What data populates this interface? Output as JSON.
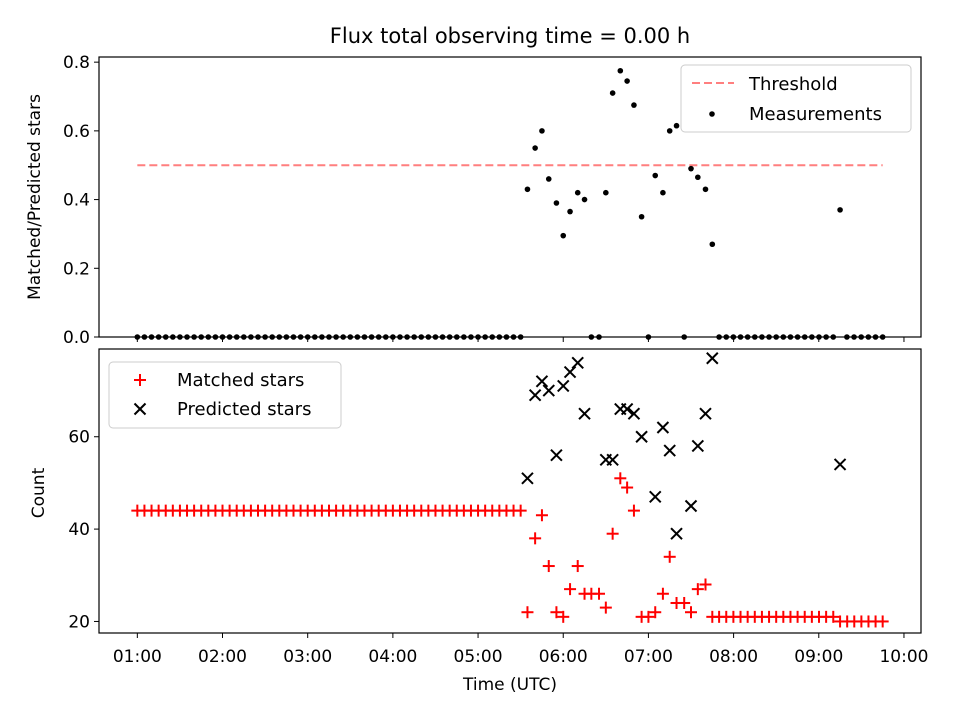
{
  "chart_data": [
    {
      "type": "scatter",
      "title": "Flux total observing time = 0.00 h",
      "xlabel": "",
      "ylabel": "Matched/Predicted stars",
      "x_units": "hours UTC",
      "xlim": [
        0.55,
        10.2
      ],
      "ylim": [
        0,
        0.815
      ],
      "y_ticks": [
        0.0,
        0.2,
        0.4,
        0.6,
        0.8
      ],
      "y_tick_labels": [
        "0.0",
        "0.2",
        "0.4",
        "0.6",
        "0.8"
      ],
      "legend_position": "top-right",
      "colors": {
        "threshold": "#ff7f7f",
        "measurements": "#000000"
      },
      "threshold": {
        "label": "Threshold",
        "value": 0.5,
        "x_range": [
          1.0,
          9.75
        ],
        "style": "dashed"
      },
      "series": [
        {
          "name": "Measurements",
          "marker": "dot",
          "points": [
            [
              5.58,
              0.43
            ],
            [
              5.67,
              0.55
            ],
            [
              5.75,
              0.6
            ],
            [
              5.83,
              0.46
            ],
            [
              5.92,
              0.39
            ],
            [
              6.0,
              0.295
            ],
            [
              6.08,
              0.365
            ],
            [
              6.17,
              0.42
            ],
            [
              6.25,
              0.4
            ],
            [
              6.33,
              0.0
            ],
            [
              6.42,
              0.0
            ],
            [
              6.5,
              0.42
            ],
            [
              6.58,
              0.71
            ],
            [
              6.67,
              0.775
            ],
            [
              6.75,
              0.745
            ],
            [
              6.83,
              0.675
            ],
            [
              6.92,
              0.35
            ],
            [
              7.0,
              0.0
            ],
            [
              7.08,
              0.47
            ],
            [
              7.17,
              0.42
            ],
            [
              7.25,
              0.6
            ],
            [
              7.33,
              0.615
            ],
            [
              7.42,
              0.0
            ],
            [
              7.5,
              0.49
            ],
            [
              7.58,
              0.465
            ],
            [
              7.67,
              0.43
            ],
            [
              7.75,
              0.27
            ],
            [
              9.25,
              0.37
            ]
          ],
          "zero_ranges": [
            [
              1.0,
              5.5,
              55
            ],
            [
              7.83,
              9.17,
              17
            ],
            [
              9.33,
              9.75,
              6
            ]
          ]
        }
      ]
    },
    {
      "type": "scatter",
      "title": "",
      "xlabel": "Time (UTC)",
      "ylabel": "Count",
      "x_units": "hours UTC",
      "xlim": [
        0.55,
        10.2
      ],
      "ylim": [
        17.5,
        79
      ],
      "y_ticks": [
        20,
        40,
        60
      ],
      "y_tick_labels": [
        "20",
        "40",
        "60"
      ],
      "x_ticks": [
        1,
        2,
        3,
        4,
        5,
        6,
        7,
        8,
        9,
        10
      ],
      "x_tick_labels": [
        "01:00",
        "02:00",
        "03:00",
        "04:00",
        "05:00",
        "06:00",
        "07:00",
        "08:00",
        "09:00",
        "10:00"
      ],
      "legend_position": "top-left",
      "colors": {
        "matched": "#ff0000",
        "predicted": "#000000"
      },
      "series": [
        {
          "name": "Matched stars",
          "marker": "plus",
          "constant_runs": [
            [
              1.0,
              5.5,
              55,
              44
            ],
            [
              7.83,
              9.17,
              17,
              21
            ],
            [
              9.25,
              9.75,
              7,
              20
            ]
          ],
          "points": [
            [
              5.58,
              22
            ],
            [
              5.67,
              38
            ],
            [
              5.75,
              43
            ],
            [
              5.83,
              32
            ],
            [
              5.92,
              22
            ],
            [
              6.0,
              21
            ],
            [
              6.08,
              27
            ],
            [
              6.17,
              32
            ],
            [
              6.25,
              26
            ],
            [
              6.33,
              26
            ],
            [
              6.42,
              26
            ],
            [
              6.5,
              23
            ],
            [
              6.58,
              39
            ],
            [
              6.67,
              51
            ],
            [
              6.75,
              49
            ],
            [
              6.83,
              44
            ],
            [
              6.92,
              21
            ],
            [
              7.0,
              21
            ],
            [
              7.08,
              22
            ],
            [
              7.17,
              26
            ],
            [
              7.25,
              34
            ],
            [
              7.33,
              24
            ],
            [
              7.42,
              24
            ],
            [
              7.5,
              22
            ],
            [
              7.58,
              27
            ],
            [
              7.67,
              28
            ],
            [
              7.75,
              21
            ]
          ]
        },
        {
          "name": "Predicted stars",
          "marker": "x",
          "points": [
            [
              5.58,
              51
            ],
            [
              5.67,
              69
            ],
            [
              5.75,
              72
            ],
            [
              5.83,
              70
            ],
            [
              5.92,
              56
            ],
            [
              6.0,
              71
            ],
            [
              6.08,
              74
            ],
            [
              6.17,
              76
            ],
            [
              6.25,
              65
            ],
            [
              6.5,
              55
            ],
            [
              6.58,
              55
            ],
            [
              6.67,
              66
            ],
            [
              6.75,
              66
            ],
            [
              6.83,
              65
            ],
            [
              6.92,
              60
            ],
            [
              7.08,
              47
            ],
            [
              7.17,
              62
            ],
            [
              7.25,
              57
            ],
            [
              7.33,
              39
            ],
            [
              7.5,
              45
            ],
            [
              7.58,
              58
            ],
            [
              7.67,
              65
            ],
            [
              7.75,
              77
            ],
            [
              9.25,
              54
            ]
          ]
        }
      ]
    }
  ]
}
